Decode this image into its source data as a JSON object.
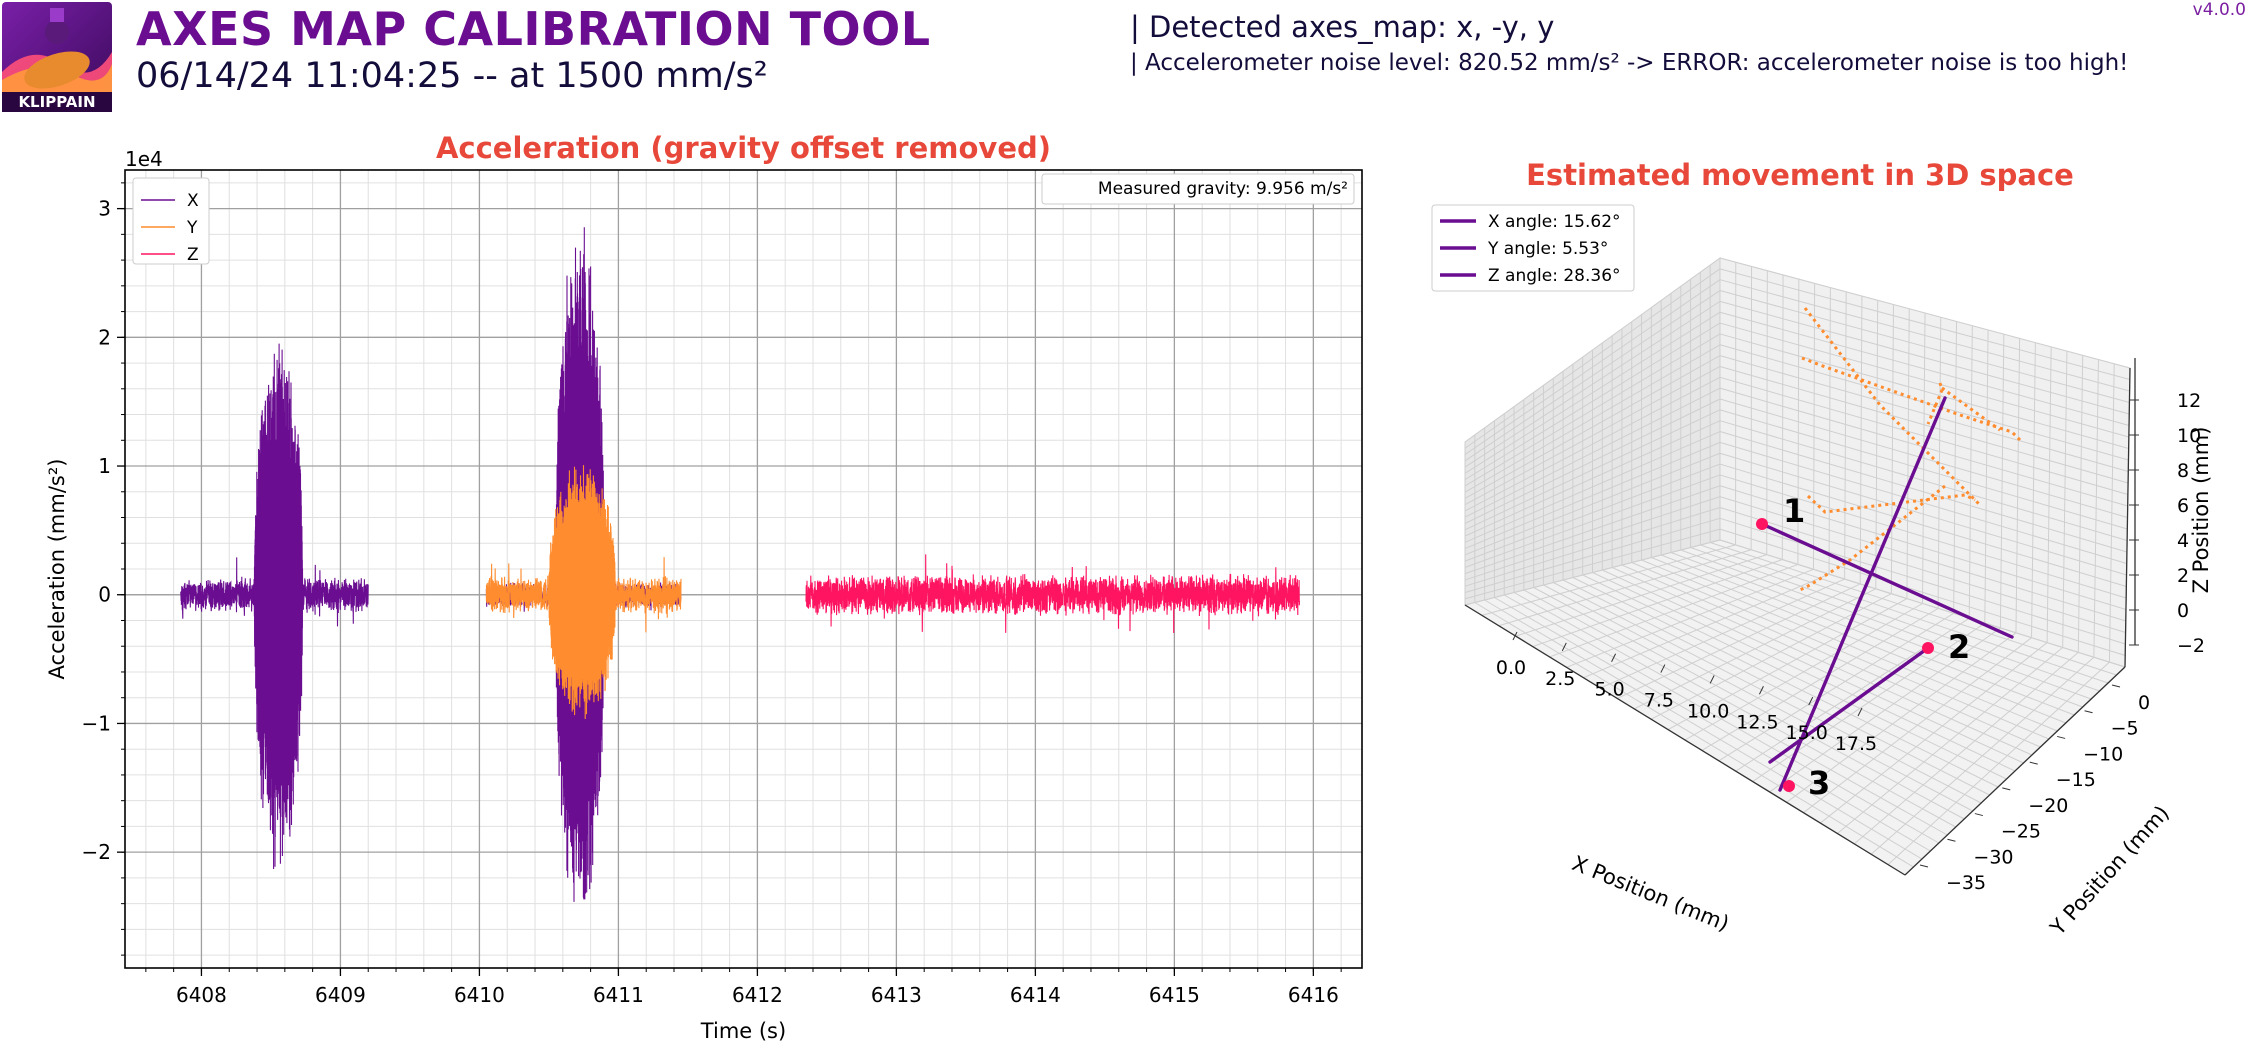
{
  "header": {
    "title": "AXES MAP CALIBRATION TOOL",
    "subtitle": "06/14/24 11:04:25 -- at 1500 mm/s²",
    "detected": "| Detected axes_map: x, -y, y",
    "noise": "| Accelerometer noise level: 820.52 mm/s² -> ERROR: accelerometer noise is too high!",
    "version": "v4.0.0",
    "logo_text": "KLIPPAIN"
  },
  "colors": {
    "purple": "#6a0d91",
    "orange": "#ff8c2e",
    "pink": "#ff1461",
    "title_red": "#e8483a",
    "text_dark": "#120d3a"
  },
  "chart_data": [
    {
      "type": "line",
      "title": "Acceleration (gravity offset removed)",
      "xlabel": "Time (s)",
      "ylabel": "Acceleration (mm/s²)",
      "y_offset_label": "1e4",
      "xlim": [
        6407.45,
        6416.35
      ],
      "ylim": [
        -2.9,
        3.3
      ],
      "xticks": [
        6408,
        6409,
        6410,
        6411,
        6412,
        6413,
        6414,
        6415,
        6416
      ],
      "yticks": [
        -2,
        -1,
        0,
        1,
        2,
        3
      ],
      "grid": true,
      "legend": {
        "placement": "top-left",
        "entries": [
          "X",
          "Y",
          "Z"
        ]
      },
      "annotation": "Measured gravity: 9.956 m/s²",
      "series": [
        {
          "name": "X",
          "color": "#6a0d91",
          "segments": [
            {
              "t_start": 6407.85,
              "t_end": 6409.2,
              "noise": 0.11
            },
            {
              "t_start": 6410.05,
              "t_end": 6411.45,
              "noise": 0.08
            }
          ],
          "bursts": [
            {
              "t_start": 6408.38,
              "t_end": 6408.78,
              "max": 2.0,
              "min": -2.2
            },
            {
              "t_start": 6410.55,
              "t_end": 6410.95,
              "max": 2.95,
              "min": -2.6
            }
          ]
        },
        {
          "name": "Y",
          "color": "#ff8c2e",
          "segments": [
            {
              "t_start": 6410.05,
              "t_end": 6411.45,
              "noise": 0.12
            }
          ],
          "bursts": [
            {
              "t_start": 6410.5,
              "t_end": 6411.05,
              "max": 1.05,
              "min": -1.0
            }
          ]
        },
        {
          "name": "Z",
          "color": "#ff1461",
          "segments": [
            {
              "t_start": 6412.35,
              "t_end": 6415.9,
              "noise": 0.13
            }
          ],
          "bursts": []
        }
      ]
    },
    {
      "type": "line3d",
      "title": "Estimated movement in 3D space",
      "xlabel": "X Position (mm)",
      "ylabel": "Y Position (mm)",
      "zlabel": "Z Position (mm)",
      "xticks": [
        "0.0",
        "2.5",
        "5.0",
        "7.5",
        "10.0",
        "12.5",
        "15.0",
        "17.5"
      ],
      "yticks": [
        "0",
        "−5",
        "−10",
        "−15",
        "−20",
        "−25",
        "−30",
        "−35"
      ],
      "zticks": [
        "−2",
        "0",
        "2",
        "4",
        "6",
        "8",
        "10",
        "12"
      ],
      "legend": {
        "placement": "top-left",
        "entries": [
          "X angle: 15.62°",
          "Y angle: 5.53°",
          "Z angle: 28.36°"
        ]
      },
      "point_labels": [
        "1",
        "2",
        "3"
      ]
    }
  ]
}
